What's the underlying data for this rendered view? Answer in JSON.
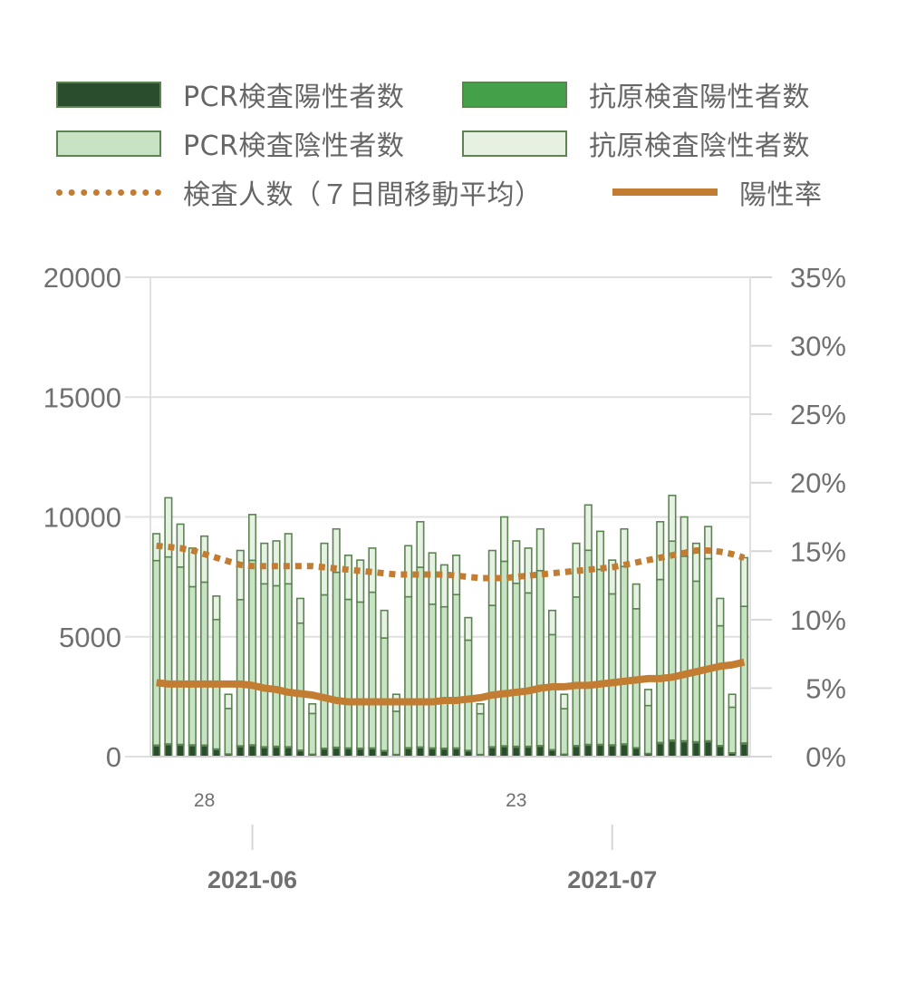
{
  "legend": [
    {
      "label": "PCR検査陽性者数",
      "type": "box",
      "fill": "#2a4d2e",
      "stroke": "#5c8452"
    },
    {
      "label": "抗原検査陽性者数",
      "type": "box",
      "fill": "#45a04a",
      "stroke": "#5c8452"
    },
    {
      "label": "PCR検査陰性者数",
      "type": "box",
      "fill": "#c8e3c4",
      "stroke": "#5c8452"
    },
    {
      "label": "抗原検査陰性者数",
      "type": "box",
      "fill": "#e6f1e4",
      "stroke": "#5c8452"
    },
    {
      "label": "検査人数（７日間移動平均）",
      "type": "dotted",
      "color": "#c27d33"
    },
    {
      "label": "陽性率",
      "type": "solid",
      "color": "#c27d33"
    }
  ],
  "chart_data": {
    "type": "bar",
    "stacked": true,
    "y_left": {
      "min": 0,
      "max": 20000,
      "ticks": [
        "0",
        "5000",
        "10000",
        "15000",
        "20000"
      ]
    },
    "y_right": {
      "min": 0,
      "max": 35,
      "unit": "%",
      "ticks": [
        "0%",
        "5%",
        "10%",
        "15%",
        "20%",
        "25%",
        "30%",
        "35%"
      ]
    },
    "x_day_labels": [
      {
        "index": 4,
        "label": "28"
      },
      {
        "index": 30,
        "label": "23"
      }
    ],
    "x_month_labels": [
      {
        "index": 8,
        "label": "2021-06"
      },
      {
        "index": 38,
        "label": "2021-07"
      }
    ],
    "totals": [
      9300,
      10800,
      9700,
      8700,
      9200,
      6700,
      2600,
      8600,
      10100,
      8900,
      9000,
      9300,
      6600,
      2200,
      8900,
      9500,
      8400,
      8200,
      8700,
      6100,
      2600,
      8800,
      9800,
      8500,
      8000,
      8400,
      5800,
      2200,
      8600,
      10000,
      9000,
      8700,
      9500,
      6100,
      2600,
      8900,
      10500,
      9400,
      8200,
      9500,
      7200,
      2800,
      9800,
      10900,
      10000,
      8900,
      9600,
      6600,
      2600,
      8300
    ],
    "series": [
      {
        "name": "PCR検査陽性者数",
        "values": [
          450,
          500,
          480,
          460,
          450,
          300,
          100,
          420,
          460,
          380,
          400,
          380,
          250,
          90,
          320,
          360,
          330,
          320,
          330,
          230,
          80,
          340,
          370,
          330,
          320,
          330,
          240,
          80,
          380,
          420,
          400,
          400,
          430,
          270,
          90,
          430,
          480,
          480,
          460,
          500,
          350,
          120,
          550,
          650,
          620,
          580,
          620,
          430,
          150,
          530
        ]
      },
      {
        "name": "抗原検査陽性者数",
        "values": [
          30,
          30,
          30,
          30,
          30,
          20,
          10,
          30,
          30,
          30,
          30,
          30,
          20,
          10,
          30,
          30,
          30,
          30,
          30,
          20,
          10,
          30,
          30,
          30,
          30,
          30,
          20,
          10,
          30,
          30,
          30,
          30,
          30,
          20,
          10,
          30,
          30,
          30,
          30,
          30,
          20,
          10,
          40,
          40,
          40,
          40,
          40,
          30,
          10,
          40
        ]
      },
      {
        "name": "PCR検査陰性者数",
        "values": [
          7700,
          7800,
          7400,
          6600,
          6800,
          5400,
          1900,
          6100,
          7700,
          6800,
          6700,
          6800,
          5300,
          1700,
          6400,
          7300,
          6200,
          6100,
          6500,
          4700,
          1800,
          6300,
          7500,
          6000,
          5900,
          6400,
          4600,
          1700,
          5900,
          7700,
          6800,
          6400,
          7300,
          4800,
          1900,
          6200,
          8100,
          7300,
          6300,
          7400,
          5800,
          2000,
          6800,
          8300,
          7700,
          6700,
          7600,
          5000,
          1900,
          5700
        ]
      },
      {
        "name": "抗原検査陰性者数",
        "values": [
          1120,
          2470,
          1790,
          1610,
          1920,
          980,
          590,
          2050,
          1910,
          1690,
          1870,
          2090,
          1030,
          400,
          2150,
          1810,
          1840,
          1750,
          1840,
          1150,
          710,
          2130,
          1900,
          2140,
          1750,
          1640,
          940,
          410,
          2290,
          1850,
          1770,
          1870,
          1740,
          1010,
          600,
          2240,
          1890,
          1590,
          1410,
          1570,
          1030,
          670,
          2410,
          1910,
          1640,
          1580,
          1340,
          1140,
          540,
          2030
        ]
      },
      {
        "name": "検査人数（７日間移動平均）",
        "type": "line",
        "axis": "left",
        "values": [
          8800,
          8750,
          8700,
          8600,
          8450,
          8300,
          8150,
          8000,
          7950,
          7950,
          7950,
          7950,
          7950,
          7950,
          7900,
          7850,
          7800,
          7750,
          7700,
          7650,
          7600,
          7600,
          7600,
          7600,
          7600,
          7550,
          7500,
          7450,
          7450,
          7450,
          7500,
          7550,
          7600,
          7650,
          7700,
          7750,
          7800,
          7850,
          7900,
          8000,
          8100,
          8200,
          8300,
          8400,
          8500,
          8600,
          8600,
          8550,
          8450,
          8300
        ]
      },
      {
        "name": "陽性率",
        "type": "line",
        "axis": "right",
        "values": [
          5.4,
          5.3,
          5.3,
          5.3,
          5.3,
          5.3,
          5.3,
          5.3,
          5.2,
          5.0,
          4.9,
          4.7,
          4.6,
          4.5,
          4.3,
          4.1,
          4.0,
          4.0,
          4.0,
          4.0,
          4.0,
          4.0,
          4.0,
          4.0,
          4.1,
          4.1,
          4.2,
          4.3,
          4.5,
          4.6,
          4.7,
          4.8,
          5.0,
          5.1,
          5.1,
          5.2,
          5.2,
          5.3,
          5.4,
          5.5,
          5.6,
          5.7,
          5.7,
          5.8,
          6.0,
          6.2,
          6.4,
          6.6,
          6.7,
          6.9
        ]
      }
    ]
  }
}
